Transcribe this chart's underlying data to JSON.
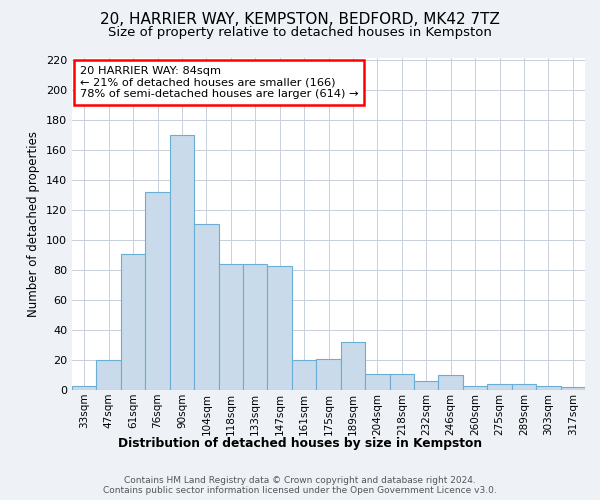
{
  "title1": "20, HARRIER WAY, KEMPSTON, BEDFORD, MK42 7TZ",
  "title2": "Size of property relative to detached houses in Kempston",
  "xlabel": "Distribution of detached houses by size in Kempston",
  "ylabel": "Number of detached properties",
  "categories": [
    "33sqm",
    "47sqm",
    "61sqm",
    "76sqm",
    "90sqm",
    "104sqm",
    "118sqm",
    "133sqm",
    "147sqm",
    "161sqm",
    "175sqm",
    "189sqm",
    "204sqm",
    "218sqm",
    "232sqm",
    "246sqm",
    "260sqm",
    "275sqm",
    "289sqm",
    "303sqm",
    "317sqm"
  ],
  "values": [
    3,
    20,
    91,
    132,
    170,
    111,
    84,
    84,
    83,
    20,
    21,
    32,
    11,
    11,
    6,
    10,
    3,
    4,
    4,
    3,
    2
  ],
  "bar_color": "#c9daea",
  "bar_edge_color": "#6aaed6",
  "annotation_box_text": "20 HARRIER WAY: 84sqm\n← 21% of detached houses are smaller (166)\n78% of semi-detached houses are larger (614) →",
  "property_line_x": 3.5,
  "ylim": [
    0,
    222
  ],
  "yticks": [
    0,
    20,
    40,
    60,
    80,
    100,
    120,
    140,
    160,
    180,
    200,
    220
  ],
  "bg_color": "#eef2f7",
  "plot_bg_color": "#ffffff",
  "grid_color": "#c8d0db",
  "title1_fontsize": 11,
  "title2_fontsize": 9.5,
  "footnote": "Contains HM Land Registry data © Crown copyright and database right 2024.\nContains public sector information licensed under the Open Government Licence v3.0."
}
